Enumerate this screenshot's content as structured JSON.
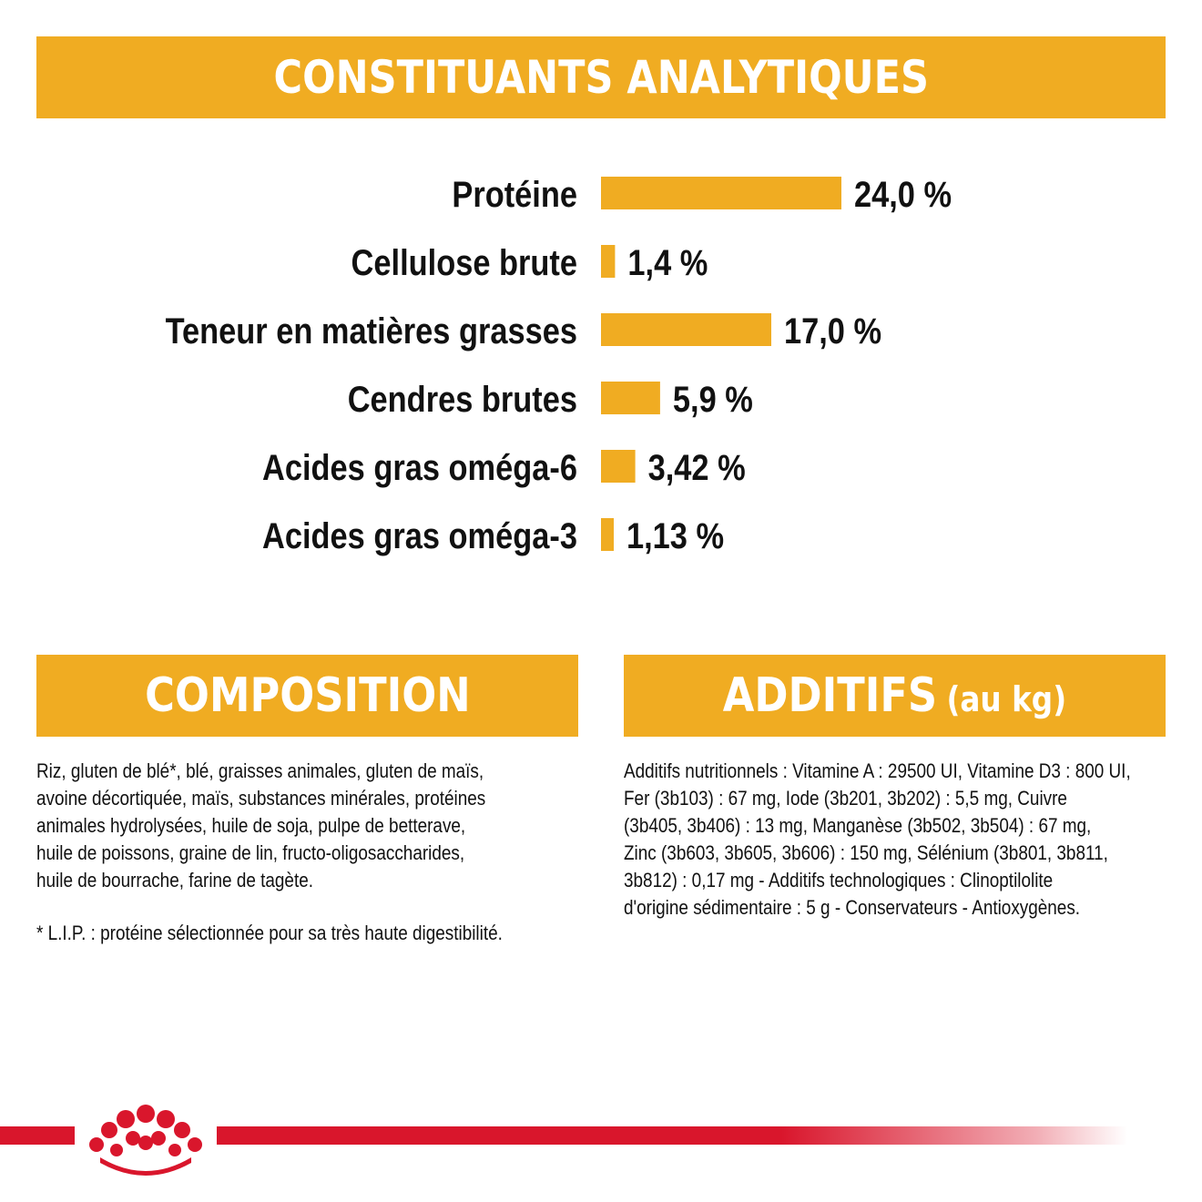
{
  "header": {
    "title": "CONSTITUANTS ANALYTIQUES"
  },
  "chart_data": {
    "type": "bar",
    "orientation": "horizontal",
    "categories": [
      "Protéine",
      "Cellulose brute",
      "Teneur en matières grasses",
      "Cendres brutes",
      "Acides gras oméga-6",
      "Acides gras oméga-3"
    ],
    "values": [
      24.0,
      1.4,
      17.0,
      5.9,
      3.42,
      1.13
    ],
    "value_labels": [
      "24,0 %",
      "1,4 %",
      "17,0 %",
      "5,9 %",
      "3,42 %",
      "1,13 %"
    ],
    "title": "CONSTITUANTS ANALYTIQUES",
    "xlabel": "",
    "ylabel": "",
    "grid": false,
    "legend": "none",
    "bar_color": "#f0ac22"
  },
  "composition": {
    "title": "COMPOSITION",
    "lines": [
      "Riz, gluten de blé*, blé, graisses animales, gluten de maïs,",
      "avoine décortiquée, maïs, substances minérales, protéines",
      "animales hydrolysées, huile de soja, pulpe de betterave,",
      "huile de poissons, graine de lin, fructo-oligosaccharides,",
      "huile de bourrache, farine de tagète."
    ],
    "note": "* L.I.P. : protéine sélectionnée pour sa très haute digestibilité."
  },
  "additifs": {
    "title": "ADDITIFS",
    "subtitle": "(au kg)",
    "lines": [
      "Additifs nutritionnels : Vitamine A : 29500 UI, Vitamine D3 : 800 UI,",
      "Fer (3b103) : 67 mg, Iode (3b201, 3b202) : 5,5 mg, Cuivre",
      "(3b405, 3b406) : 13 mg, Manganèse (3b502, 3b504) : 67 mg,",
      "Zinc (3b603, 3b605, 3b606) : 150 mg, Sélénium (3b801, 3b811,",
      "3b812) : 0,17 mg - Additifs technologiques : Clinoptilolite",
      "d'origine sédimentaire : 5 g - Conservateurs - Antioxygènes."
    ]
  },
  "colors": {
    "accent": "#f0ac22",
    "brand_red": "#d9162c",
    "text": "#111111"
  },
  "footer": {
    "logo_icon": "royal-canin-crown-icon"
  }
}
